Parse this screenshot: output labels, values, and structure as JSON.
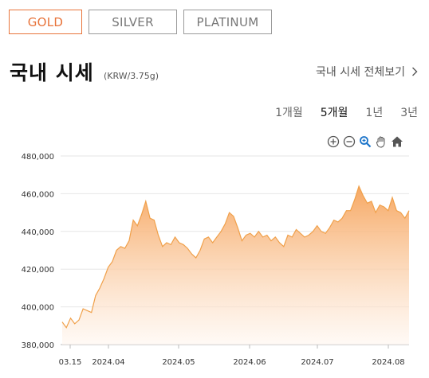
{
  "metal_tabs": [
    {
      "label": "GOLD",
      "active": true
    },
    {
      "label": "SILVER",
      "active": false
    },
    {
      "label": "PLATINUM",
      "active": false
    }
  ],
  "header": {
    "title": "국내 시세",
    "unit": "(KRW/3.75g)",
    "view_all_label": "국내 시세 전체보기"
  },
  "periods": [
    {
      "label": "1개월",
      "active": false
    },
    {
      "label": "5개월",
      "active": true
    },
    {
      "label": "1년",
      "active": false
    },
    {
      "label": "3년",
      "active": false
    }
  ],
  "toolbar_icons": [
    "zoom-in-icon",
    "zoom-out-icon",
    "magnify-icon",
    "pan-hand-icon",
    "home-icon"
  ],
  "colors": {
    "accent": "#e8743b",
    "line": "#f0a04a",
    "fill_top": "#f6a35a",
    "fill_bottom": "#fff6ef"
  },
  "chart_data": {
    "type": "area",
    "xlabel": "",
    "ylabel": "",
    "x_tick_labels": [
      "03.15",
      "2024.04",
      "2024.05",
      "2024.06",
      "2024.07",
      "2024.08"
    ],
    "y_tick_labels": [
      "480,000",
      "460,000",
      "440,000",
      "420,000",
      "400,000",
      "380,000"
    ],
    "ylim": [
      380000,
      480000
    ],
    "grid": true,
    "series": [
      {
        "values": [
          392000,
          389000,
          394000,
          391000,
          393000,
          399000,
          398000,
          397000,
          406000,
          410000,
          415000,
          421000,
          424000,
          430000,
          432000,
          431000,
          435000,
          446000,
          443000,
          449000,
          456000,
          447000,
          446000,
          438000,
          432000,
          434000,
          433000,
          437000,
          434000,
          433000,
          431000,
          428000,
          426000,
          430000,
          436000,
          437000,
          434000,
          437000,
          440000,
          444000,
          450000,
          448000,
          442000,
          435000,
          438000,
          439000,
          437000,
          440000,
          437000,
          438000,
          435000,
          437000,
          434000,
          432000,
          438000,
          437000,
          441000,
          439000,
          437000,
          438000,
          440000,
          443000,
          440000,
          439000,
          442000,
          446000,
          445000,
          447000,
          451000,
          451000,
          457000,
          464000,
          459000,
          455000,
          456000,
          450000,
          454000,
          453000,
          451000,
          458000,
          451000,
          450000,
          447000,
          451000
        ]
      }
    ]
  }
}
